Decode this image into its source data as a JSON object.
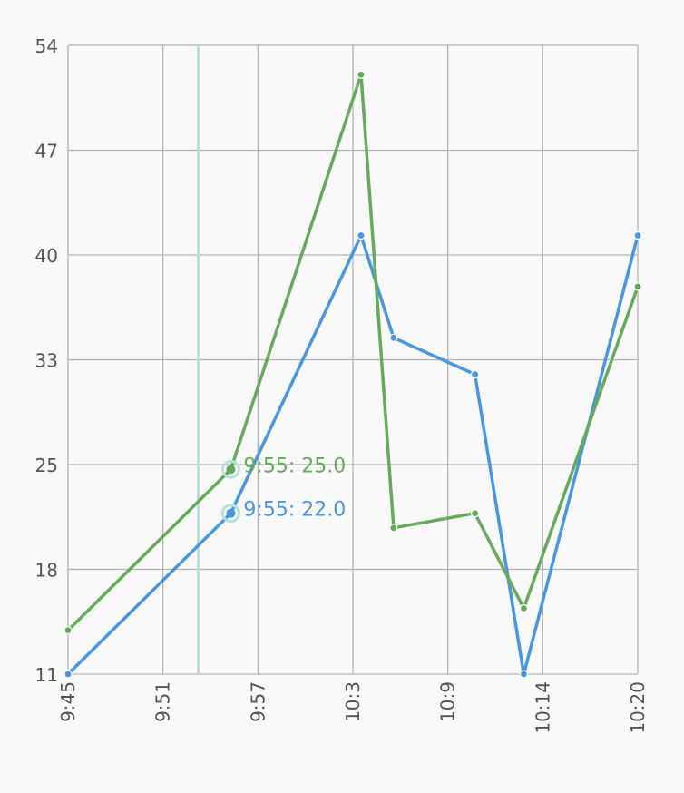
{
  "chart_data": {
    "type": "line",
    "x_ticks": [
      "9:45",
      "9:51",
      "9:57",
      "10:3",
      "10:9",
      "10:14",
      "10:20"
    ],
    "y_ticks": [
      "11",
      "18",
      "25",
      "33",
      "40",
      "47",
      "54"
    ],
    "xlim": [
      "9:45",
      "10:20"
    ],
    "ylim": [
      11,
      54
    ],
    "grid": true,
    "series": [
      {
        "color": "#4a96e0",
        "points": [
          {
            "x": "9:45",
            "y": 11
          },
          {
            "x": "9:55",
            "y": 22
          },
          {
            "x": "10:3",
            "y": 41
          },
          {
            "x": "10:5",
            "y": 34
          },
          {
            "x": "10:10",
            "y": 31.5
          },
          {
            "x": "10:13",
            "y": 11
          },
          {
            "x": "10:20",
            "y": 41
          }
        ]
      },
      {
        "color": "#66aa5c",
        "points": [
          {
            "x": "9:45",
            "y": 14
          },
          {
            "x": "9:55",
            "y": 25
          },
          {
            "x": "10:3",
            "y": 52
          },
          {
            "x": "10:5",
            "y": 21
          },
          {
            "x": "10:10",
            "y": 22
          },
          {
            "x": "10:13",
            "y": 15.5
          },
          {
            "x": "10:20",
            "y": 37.5
          }
        ]
      }
    ],
    "cursor": {
      "x": "9:53",
      "color": "#b8e0d8",
      "tooltips": [
        {
          "series": 1,
          "x": "9:55",
          "text": "9:55: 25.0",
          "color": "#66aa5c"
        },
        {
          "series": 0,
          "x": "9:55",
          "text": "9:55: 22.0",
          "color": "#4a96e0"
        }
      ]
    }
  }
}
